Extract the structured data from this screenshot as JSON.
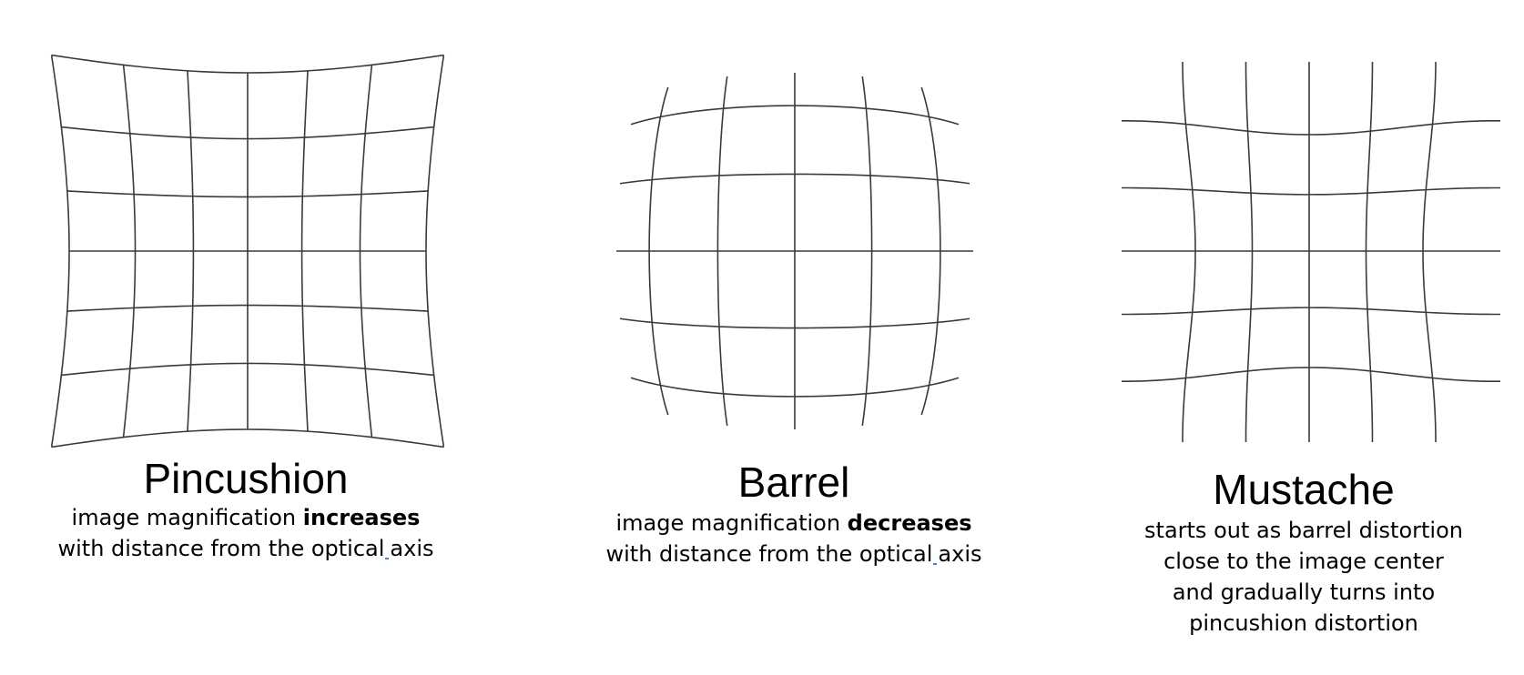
{
  "panels": [
    {
      "id": "pincushion",
      "title": "Pincushion",
      "desc_prefix": "image magnification ",
      "desc_bold": "increases",
      "desc_line2_a": "with distance from the optical",
      "desc_line2_b": "axis"
    },
    {
      "id": "barrel",
      "title": "Barrel",
      "desc_prefix": "image magnification ",
      "desc_bold": "decreases",
      "desc_line2_a": "with distance from the optical",
      "desc_line2_b": "axis"
    },
    {
      "id": "mustache",
      "title": "Mustache",
      "desc_lines": [
        "starts out as barrel distortion",
        "close to the image center",
        "and gradually turns into",
        "pincushion distortion"
      ]
    }
  ]
}
